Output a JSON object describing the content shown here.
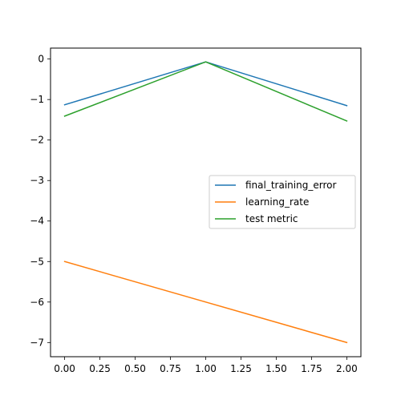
{
  "chart_data": {
    "type": "line",
    "title": "",
    "xlabel": "",
    "ylabel": "",
    "x": [
      0,
      1,
      2
    ],
    "xlim": [
      -0.1,
      2.1
    ],
    "ylim": [
      -7.35,
      0.27
    ],
    "xticks": [
      0.0,
      0.25,
      0.5,
      0.75,
      1.0,
      1.25,
      1.5,
      1.75,
      2.0
    ],
    "xtick_labels": [
      "0.00",
      "0.25",
      "0.50",
      "0.75",
      "1.00",
      "1.25",
      "1.50",
      "1.75",
      "2.00"
    ],
    "yticks": [
      0,
      -1,
      -2,
      -3,
      -4,
      -5,
      -6,
      -7
    ],
    "ytick_labels": [
      "0",
      "−1",
      "−2",
      "−3",
      "−4",
      "−5",
      "−6",
      "−7"
    ],
    "grid": false,
    "legend_position": "center-right",
    "series": [
      {
        "name": "final_training_error",
        "color": "#1f77b4",
        "values": [
          -1.13,
          -0.07,
          -1.15
        ]
      },
      {
        "name": "learning_rate",
        "color": "#ff7f0e",
        "values": [
          -5.0,
          -6.0,
          -7.0
        ]
      },
      {
        "name": "test metric",
        "color": "#2ca02c",
        "values": [
          -1.41,
          -0.07,
          -1.53
        ]
      }
    ]
  }
}
